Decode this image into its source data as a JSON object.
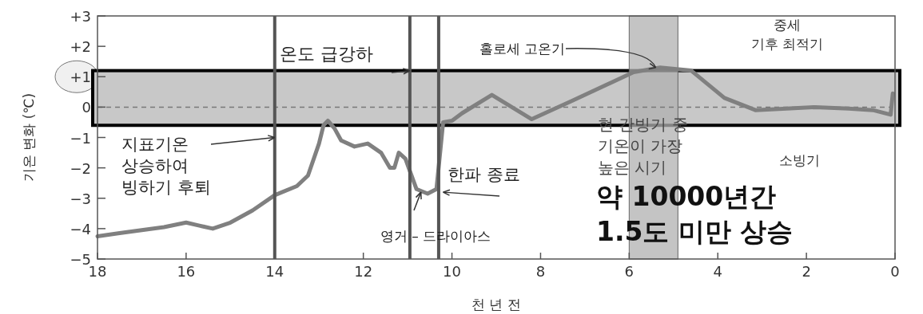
{
  "chart_data": {
    "type": "line",
    "xlabel": "천 년 전",
    "ylabel": "기온 변화 (℃)",
    "x": [
      18,
      17.5,
      17,
      16.5,
      16,
      15.7,
      15.4,
      15,
      14.5,
      14,
      13.5,
      13.25,
      13.0,
      12.9,
      12.8,
      12.65,
      12.5,
      12.2,
      11.9,
      11.6,
      11.4,
      11.3,
      11.2,
      11.05,
      10.8,
      10.55,
      10.35,
      10.2,
      10.0,
      9.77,
      9.1,
      8.2,
      7.3,
      5.9,
      5.3,
      4.6,
      3.85,
      3.15,
      2.45,
      1.8,
      1.05,
      0.5,
      0.1,
      0.05
    ],
    "series": [
      {
        "color": "#808080",
        "values": [
          -4.25,
          -4.15,
          -4.05,
          -3.95,
          -3.8,
          -3.9,
          -4.0,
          -3.8,
          -3.4,
          -2.9,
          -2.6,
          -2.25,
          -1.2,
          -0.6,
          -0.45,
          -0.7,
          -1.1,
          -1.3,
          -1.2,
          -1.5,
          -2.0,
          -2.0,
          -1.5,
          -1.7,
          -2.7,
          -2.85,
          -2.7,
          -0.5,
          -0.45,
          -0.2,
          0.4,
          -0.4,
          0.2,
          1.15,
          1.3,
          1.2,
          0.3,
          -0.1,
          -0.05,
          0,
          -0.05,
          -0.1,
          -0.25,
          0.45
        ]
      }
    ],
    "xlim": [
      18,
      0
    ],
    "ylim": [
      -5,
      3
    ],
    "xticks": [
      18,
      16,
      14,
      12,
      10,
      8,
      6,
      4,
      2,
      0
    ],
    "yticks": [
      {
        "value": 3,
        "label": "+3"
      },
      {
        "value": 2,
        "label": "+2"
      },
      {
        "value": 1,
        "label": "+1"
      },
      0,
      {
        "value": -1,
        "label": "−1"
      },
      {
        "value": -2,
        "label": "−2"
      },
      {
        "value": -3,
        "label": "−3"
      },
      {
        "value": -4,
        "label": "−4"
      },
      {
        "value": -5,
        "label": "−5"
      }
    ],
    "ref_lines": [
      {
        "axis": "x",
        "value": 14,
        "color": "#555555"
      },
      {
        "axis": "x",
        "value": 10.95,
        "color": "#555555"
      },
      {
        "axis": "x",
        "value": 10.3,
        "color": "#555555"
      },
      {
        "axis": "y",
        "value": 0,
        "color": "#777777",
        "line_style": "dashed"
      }
    ],
    "bands": [
      {
        "axis": "y",
        "from": -0.6,
        "to": 1.2,
        "color": "#c8c8c8"
      },
      {
        "axis": "x",
        "from": 6,
        "to": 4.9,
        "color": "#b0b0b0"
      }
    ],
    "annotations": [
      {
        "text": "온도 급강하",
        "x": 10.95,
        "y": 1.2
      },
      {
        "text": "홀로세 고온기",
        "x": 5.4,
        "y": 1.3
      },
      "중세\n기후 최적기",
      {
        "text": "지표기온\n상승하여\n빙하기 후퇴",
        "x": 14,
        "y": -1
      },
      {
        "text": "한파 종료",
        "x": 10.2,
        "y": -2.8
      },
      {
        "text": "영거 – 드라이아스",
        "x": 10.7,
        "y": -2.8
      },
      "현 간빙기 중\n기온이 가장\n높은 시기",
      "소빙기",
      "약 10000년간\n1.5도 미만 상승"
    ]
  }
}
